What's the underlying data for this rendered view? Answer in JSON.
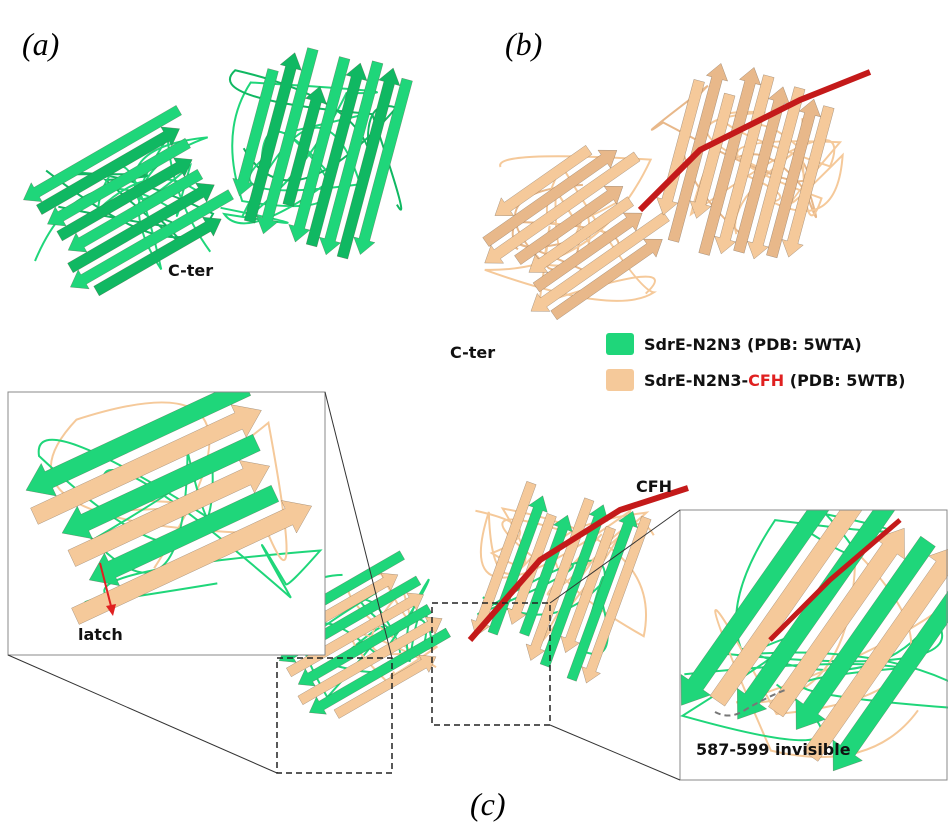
{
  "panels": {
    "a": {
      "label": "(a)",
      "c_ter": "C-ter"
    },
    "b": {
      "label": "(b)",
      "c_ter": "C-ter"
    },
    "c": {
      "label": "(c)",
      "cfh": "CFH",
      "latch": "latch",
      "invisible": "587-599 invisible"
    }
  },
  "legend": [
    {
      "text": "SdrE-N2N3 (PDB: 5WTA)",
      "color": "#1fd67a"
    },
    {
      "parts": [
        "SdrE-N2N3-",
        "CFH",
        " (PDB: 5WTB)"
      ],
      "color": "#f5c99a"
    }
  ]
}
